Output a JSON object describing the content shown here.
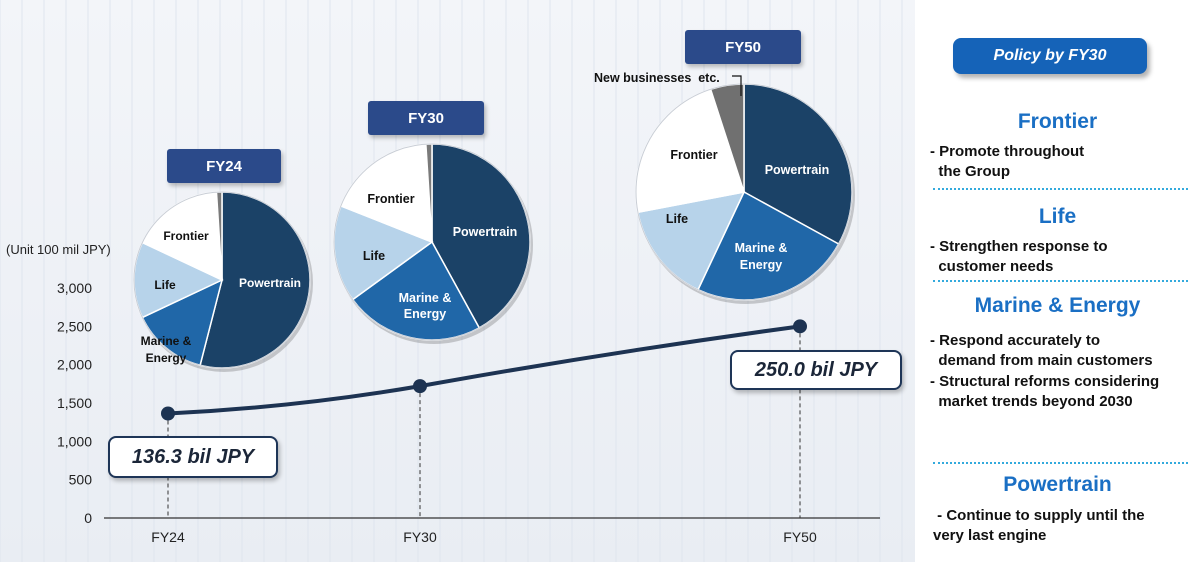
{
  "chart_data": {
    "type": "line",
    "unit_label": "(Unit 100 mil JPY)",
    "y_ticks": [
      "0",
      "500",
      "1,000",
      "1,500",
      "2,000",
      "2,500",
      "3,000"
    ],
    "ylim": [
      0,
      3000
    ],
    "x": [
      "FY24",
      "FY30",
      "FY50"
    ],
    "series": [
      {
        "values": [
          1363,
          1720,
          2500
        ]
      }
    ],
    "value_labels": {
      "FY24": "136.3 bil JPY",
      "FY50": "250.0 bil JPY"
    },
    "pies": [
      {
        "title": "FY24",
        "slices": [
          {
            "label": "Powertrain",
            "value": 54,
            "color": "#1b4267"
          },
          {
            "label": "Marine & Energy",
            "value": 14,
            "color": "#2067a8"
          },
          {
            "label": "Life",
            "value": 14,
            "color": "#b7d3ea"
          },
          {
            "label": "Frontier",
            "value": 17,
            "color": "#ffffff"
          },
          {
            "label": "",
            "value": 1,
            "color": "#7a7a7a"
          }
        ]
      },
      {
        "title": "FY30",
        "slices": [
          {
            "label": "Powertrain",
            "value": 42,
            "color": "#1b4267"
          },
          {
            "label": "Marine & Energy",
            "value": 23,
            "color": "#2067a8"
          },
          {
            "label": "Life",
            "value": 16,
            "color": "#b7d3ea"
          },
          {
            "label": "Frontier",
            "value": 18,
            "color": "#ffffff"
          },
          {
            "label": "",
            "value": 1,
            "color": "#7a7a7a"
          }
        ]
      },
      {
        "title": "FY50",
        "slices": [
          {
            "label": "Powertrain",
            "value": 33,
            "color": "#1b4267"
          },
          {
            "label": "Marine & Energy",
            "value": 24,
            "color": "#2067a8"
          },
          {
            "label": "Life",
            "value": 15,
            "color": "#b7d3ea"
          },
          {
            "label": "Frontier",
            "value": 23,
            "color": "#ffffff"
          },
          {
            "label": "New businesses  etc.",
            "value": 5,
            "color": "#707070"
          }
        ]
      }
    ]
  },
  "policy": {
    "title": "Policy by FY30",
    "sections": [
      {
        "title": "Frontier",
        "items": [
          "- Promote throughout\n  the Group"
        ]
      },
      {
        "title": "Life",
        "items": [
          "- Strengthen response to\n  customer needs"
        ]
      },
      {
        "title": "Marine & Energy",
        "items": [
          "- Respond accurately to\n  demand from main customers",
          "- Structural reforms considering\n  market trends beyond 2030"
        ]
      },
      {
        "title": "Powertrain",
        "items": [
          " - Continue to supply until the\nvery last engine"
        ]
      }
    ]
  }
}
